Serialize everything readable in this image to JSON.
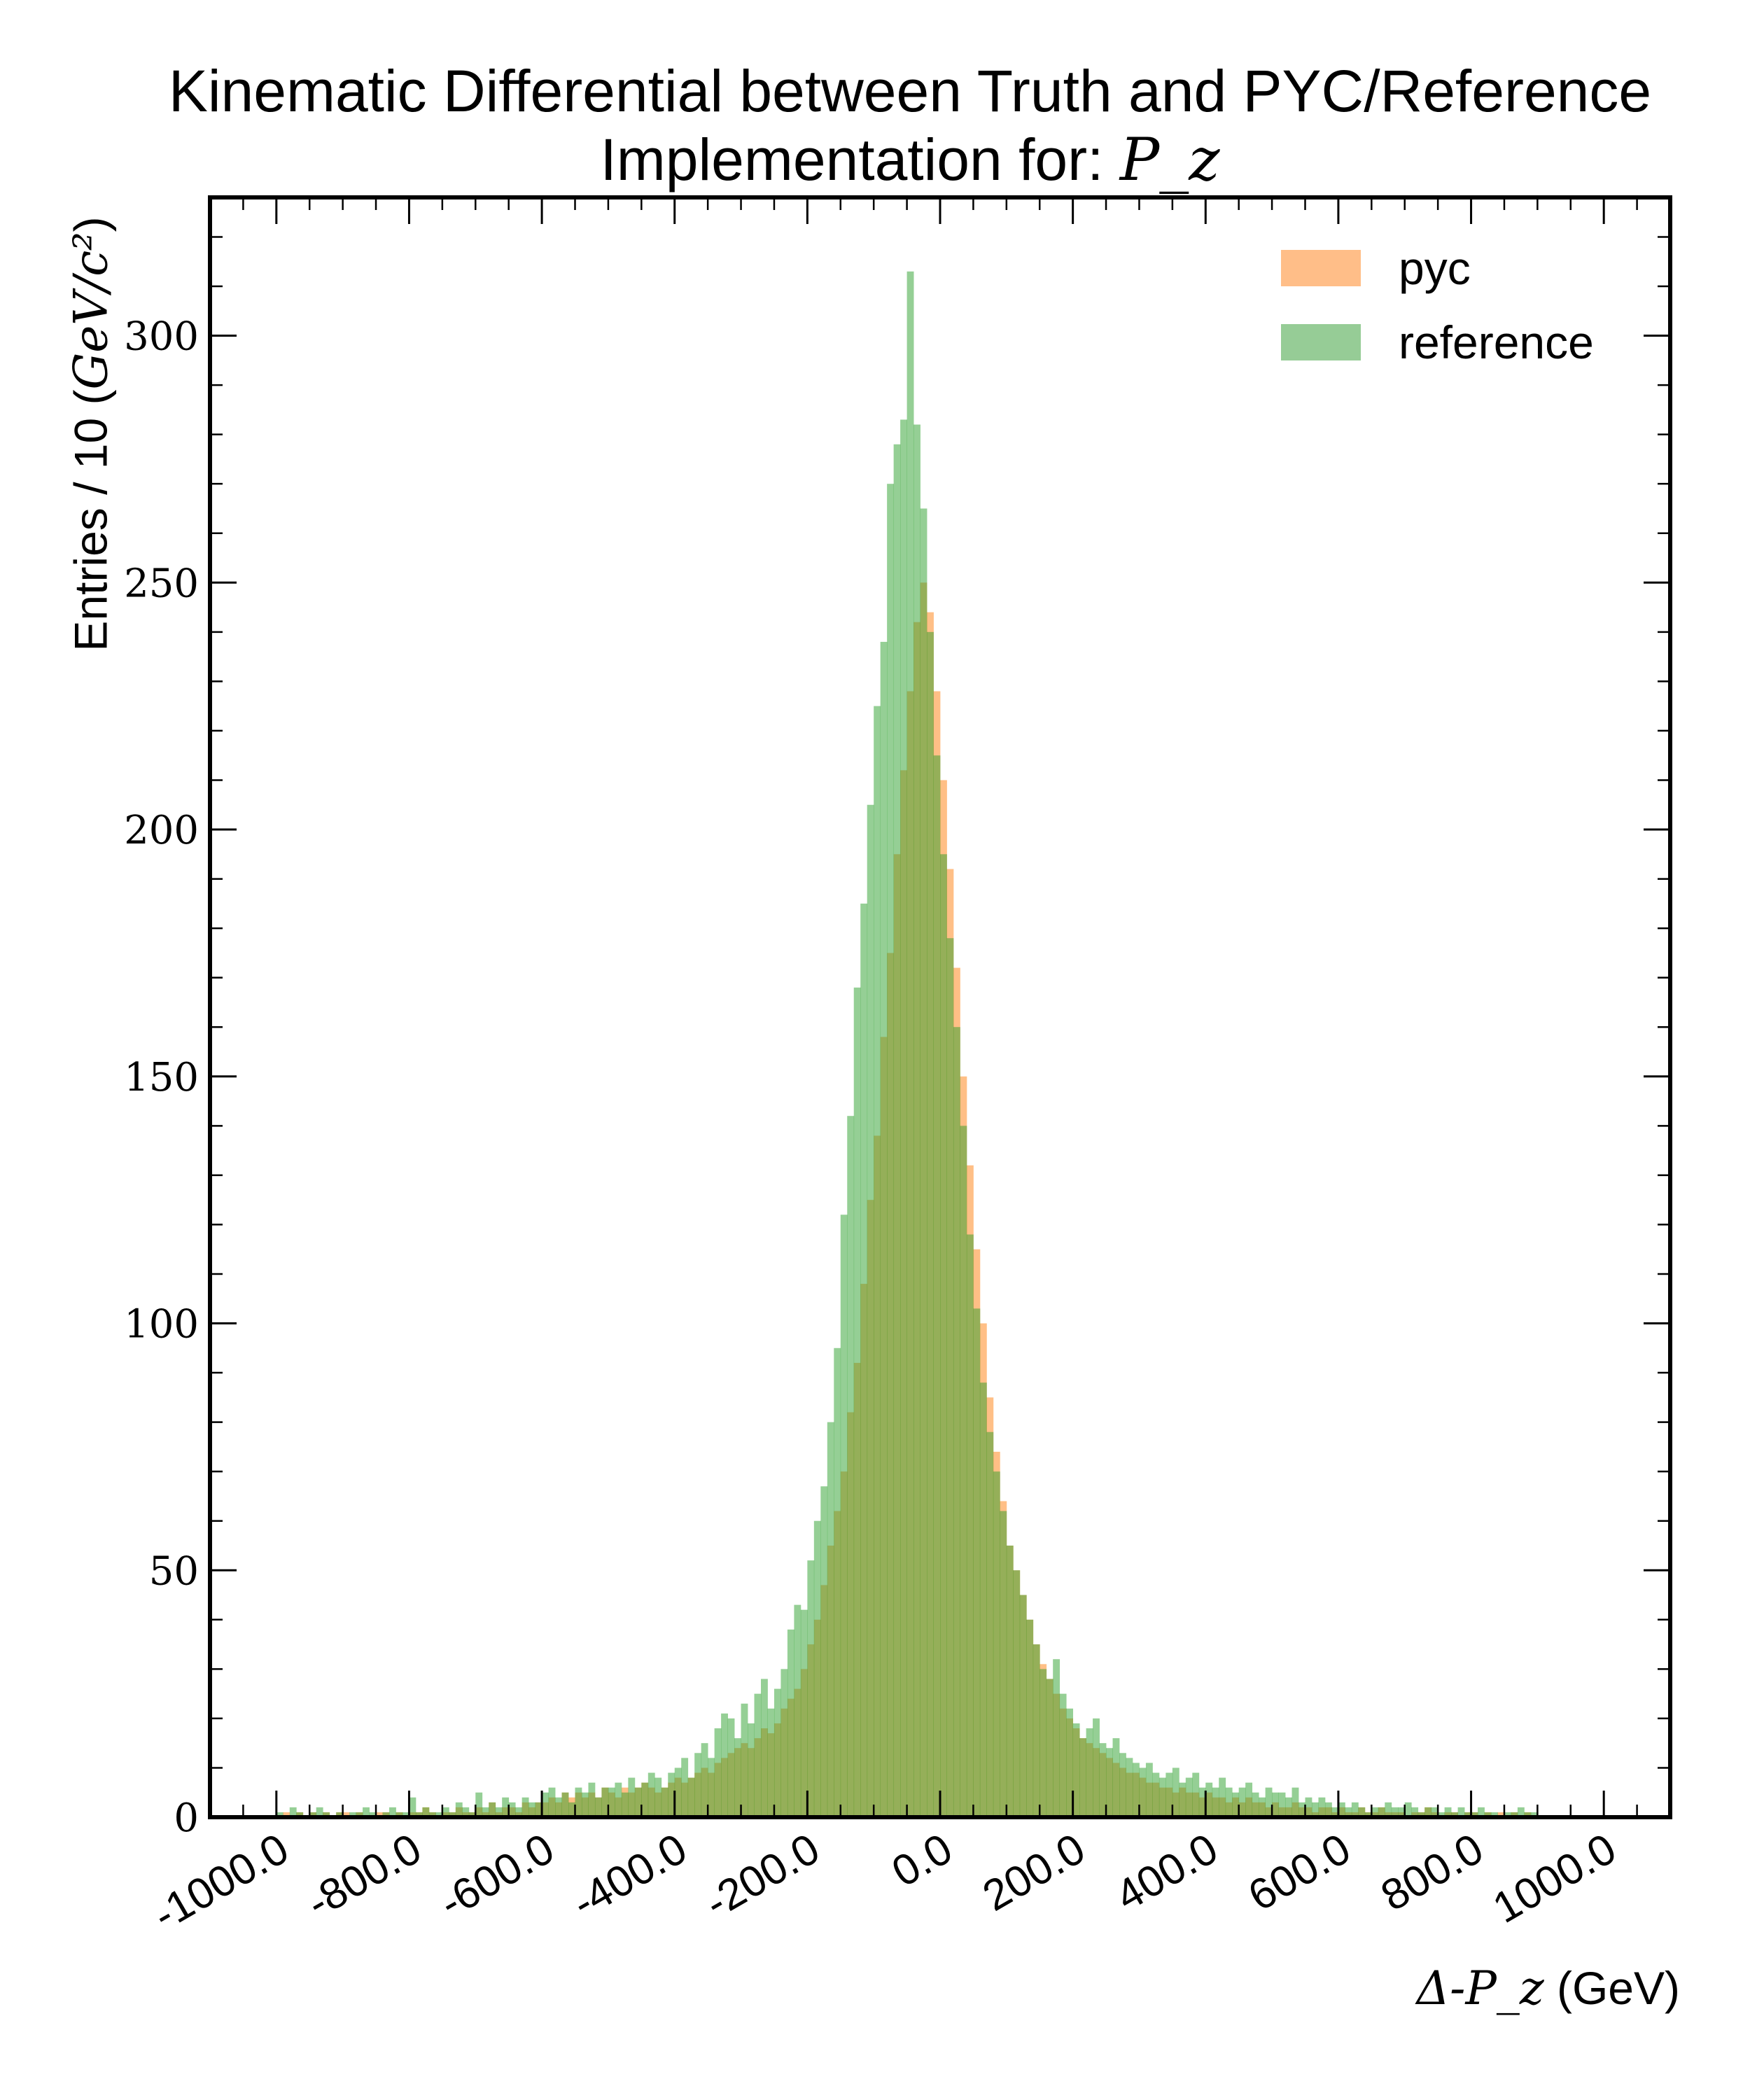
{
  "title": {
    "line1": "Kinematic Differential between Truth and PYC/Reference",
    "line2_text": "Implementation for: ",
    "line2_math": "P_z"
  },
  "axes": {
    "ylabel_text": "Entries / 10 (",
    "ylabel_math": "GeV/c²",
    "ylabel_close": ")",
    "xlabel_math": "Δ-P_z",
    "xlabel_text": " (GeV)"
  },
  "colors": {
    "pyc": "#ffbe88",
    "reference": "#96cc96",
    "overlap": "#9aab5a"
  },
  "chart_data": {
    "type": "bar",
    "histogram": true,
    "bin_width": 10,
    "xlim": [
      -1100,
      1100
    ],
    "ylim": [
      0,
      328
    ],
    "xticks": [
      -1000,
      -800,
      -600,
      -400,
      -200,
      0,
      200,
      400,
      600,
      800,
      1000
    ],
    "xtick_labels": [
      "-1000.0",
      "-800.0",
      "-600.0",
      "-400.0",
      "-200.0",
      "0.0",
      "200.0",
      "400.0",
      "600.0",
      "800.0",
      "1000.0"
    ],
    "yticks": [
      0,
      50,
      100,
      150,
      200,
      250,
      300
    ],
    "ytick_labels": [
      "0",
      "50",
      "100",
      "150",
      "200",
      "250",
      "300"
    ],
    "legend_position": "top-right",
    "grid": false,
    "series": [
      {
        "name": "pyc",
        "bin_centers": [
          -995,
          -985,
          -975,
          -965,
          -955,
          -945,
          -935,
          -925,
          -915,
          -905,
          -895,
          -885,
          -875,
          -865,
          -855,
          -845,
          -835,
          -825,
          -815,
          -805,
          -795,
          -785,
          -775,
          -765,
          -755,
          -745,
          -735,
          -725,
          -715,
          -705,
          -695,
          -685,
          -675,
          -665,
          -655,
          -645,
          -635,
          -625,
          -615,
          -605,
          -595,
          -585,
          -575,
          -565,
          -555,
          -545,
          -535,
          -525,
          -515,
          -505,
          -495,
          -485,
          -475,
          -465,
          -455,
          -445,
          -435,
          -425,
          -415,
          -405,
          -395,
          -385,
          -375,
          -365,
          -355,
          -345,
          -335,
          -325,
          -315,
          -305,
          -295,
          -285,
          -275,
          -265,
          -255,
          -245,
          -235,
          -225,
          -215,
          -205,
          -195,
          -185,
          -175,
          -165,
          -155,
          -145,
          -135,
          -125,
          -115,
          -105,
          -95,
          -85,
          -75,
          -65,
          -55,
          -45,
          -35,
          -25,
          -15,
          -5,
          5,
          15,
          25,
          35,
          45,
          55,
          65,
          75,
          85,
          95,
          105,
          115,
          125,
          135,
          145,
          155,
          165,
          175,
          185,
          195,
          205,
          215,
          225,
          235,
          245,
          255,
          265,
          275,
          285,
          295,
          305,
          315,
          325,
          335,
          345,
          355,
          365,
          375,
          385,
          395,
          405,
          415,
          425,
          435,
          445,
          455,
          465,
          475,
          485,
          495,
          505,
          515,
          525,
          535,
          545,
          555,
          565,
          575,
          585,
          595,
          605,
          615,
          625,
          635,
          645,
          655,
          665,
          675,
          685,
          695,
          705,
          715,
          725,
          735,
          745,
          755,
          765,
          775,
          785,
          795,
          805,
          815,
          825,
          835,
          845,
          855,
          865,
          875,
          885,
          895,
          905,
          915,
          925,
          935,
          945,
          955,
          965,
          975,
          985,
          995
        ],
        "values": [
          0,
          1,
          0,
          1,
          0,
          1,
          0,
          1,
          0,
          1,
          1,
          0,
          1,
          0,
          0,
          1,
          1,
          0,
          1,
          0,
          1,
          1,
          2,
          1,
          0,
          1,
          1,
          2,
          1,
          1,
          2,
          1,
          3,
          1,
          2,
          2,
          1,
          3,
          2,
          3,
          3,
          4,
          3,
          5,
          4,
          5,
          4,
          5,
          4,
          6,
          5,
          4,
          6,
          5,
          6,
          7,
          6,
          5,
          6,
          7,
          8,
          7,
          8,
          9,
          10,
          9,
          11,
          12,
          13,
          14,
          15,
          14,
          16,
          18,
          17,
          19,
          22,
          24,
          26,
          30,
          35,
          40,
          47,
          55,
          62,
          70,
          82,
          92,
          108,
          125,
          138,
          158,
          175,
          195,
          212,
          228,
          242,
          250,
          244,
          228,
          210,
          192,
          172,
          150,
          132,
          115,
          100,
          85,
          74,
          64,
          55,
          50,
          45,
          40,
          35,
          31,
          28,
          25,
          22,
          20,
          18,
          16,
          15,
          14,
          13,
          12,
          11,
          10,
          9,
          9,
          8,
          7,
          7,
          6,
          6,
          5,
          6,
          5,
          5,
          4,
          5,
          4,
          4,
          3,
          4,
          3,
          4,
          3,
          3,
          2,
          3,
          2,
          2,
          3,
          2,
          2,
          1,
          2,
          2,
          1,
          2,
          1,
          1,
          2,
          1,
          1,
          2,
          1,
          1,
          1,
          0,
          1,
          1,
          2,
          1,
          0,
          1,
          1,
          0,
          1,
          1,
          0,
          1,
          0,
          1,
          0,
          1,
          0,
          1,
          0
        ]
      },
      {
        "name": "reference",
        "bin_centers": [
          -995,
          -985,
          -975,
          -965,
          -955,
          -945,
          -935,
          -925,
          -915,
          -905,
          -895,
          -885,
          -875,
          -865,
          -855,
          -845,
          -835,
          -825,
          -815,
          -805,
          -795,
          -785,
          -775,
          -765,
          -755,
          -745,
          -735,
          -725,
          -715,
          -705,
          -695,
          -685,
          -675,
          -665,
          -655,
          -645,
          -635,
          -625,
          -615,
          -605,
          -595,
          -585,
          -575,
          -565,
          -555,
          -545,
          -535,
          -525,
          -515,
          -505,
          -495,
          -485,
          -475,
          -465,
          -455,
          -445,
          -435,
          -425,
          -415,
          -405,
          -395,
          -385,
          -375,
          -365,
          -355,
          -345,
          -335,
          -325,
          -315,
          -305,
          -295,
          -285,
          -275,
          -265,
          -255,
          -245,
          -235,
          -225,
          -215,
          -205,
          -195,
          -185,
          -175,
          -165,
          -155,
          -145,
          -135,
          -125,
          -115,
          -105,
          -95,
          -85,
          -75,
          -65,
          -55,
          -45,
          -35,
          -25,
          -15,
          -5,
          5,
          15,
          25,
          35,
          45,
          55,
          65,
          75,
          85,
          95,
          105,
          115,
          125,
          135,
          145,
          155,
          165,
          175,
          185,
          195,
          205,
          215,
          225,
          235,
          245,
          255,
          265,
          275,
          285,
          295,
          305,
          315,
          325,
          335,
          345,
          355,
          365,
          375,
          385,
          395,
          405,
          415,
          425,
          435,
          445,
          455,
          465,
          475,
          485,
          495,
          505,
          515,
          525,
          535,
          545,
          555,
          565,
          575,
          585,
          595,
          605,
          615,
          625,
          635,
          645,
          655,
          665,
          675,
          685,
          695,
          705,
          715,
          725,
          735,
          745,
          755,
          765,
          775,
          785,
          795,
          805,
          815,
          825,
          835,
          845,
          855,
          865,
          875,
          885,
          895,
          905,
          915,
          925,
          935,
          945,
          955,
          965,
          975,
          985,
          995
        ],
        "values": [
          1,
          0,
          2,
          1,
          0,
          1,
          2,
          1,
          0,
          1,
          0,
          1,
          1,
          2,
          1,
          0,
          1,
          2,
          1,
          1,
          4,
          1,
          2,
          1,
          1,
          2,
          1,
          3,
          2,
          1,
          5,
          2,
          3,
          2,
          4,
          3,
          2,
          4,
          3,
          3,
          5,
          6,
          4,
          5,
          3,
          6,
          5,
          7,
          4,
          6,
          6,
          7,
          5,
          8,
          6,
          7,
          9,
          8,
          6,
          9,
          10,
          12,
          8,
          13,
          15,
          12,
          18,
          21,
          20,
          16,
          23,
          19,
          25,
          28,
          22,
          26,
          30,
          38,
          43,
          42,
          52,
          60,
          67,
          80,
          95,
          122,
          142,
          168,
          185,
          205,
          225,
          238,
          270,
          278,
          283,
          313,
          282,
          265,
          240,
          215,
          195,
          178,
          160,
          140,
          118,
          103,
          88,
          78,
          70,
          62,
          55,
          50,
          45,
          40,
          35,
          30,
          28,
          32,
          25,
          22,
          19,
          16,
          18,
          20,
          15,
          14,
          16,
          13,
          12,
          11,
          10,
          11,
          9,
          8,
          9,
          10,
          7,
          8,
          9,
          6,
          7,
          6,
          8,
          6,
          5,
          6,
          7,
          5,
          4,
          6,
          5,
          5,
          4,
          6,
          3,
          4,
          3,
          4,
          3,
          2,
          3,
          2,
          3,
          2,
          1,
          2,
          2,
          3,
          2,
          2,
          3,
          2,
          1,
          2,
          2,
          1,
          2,
          1,
          2,
          1,
          1,
          2,
          1,
          1,
          0,
          1,
          1,
          2,
          1,
          1
        ]
      }
    ]
  }
}
